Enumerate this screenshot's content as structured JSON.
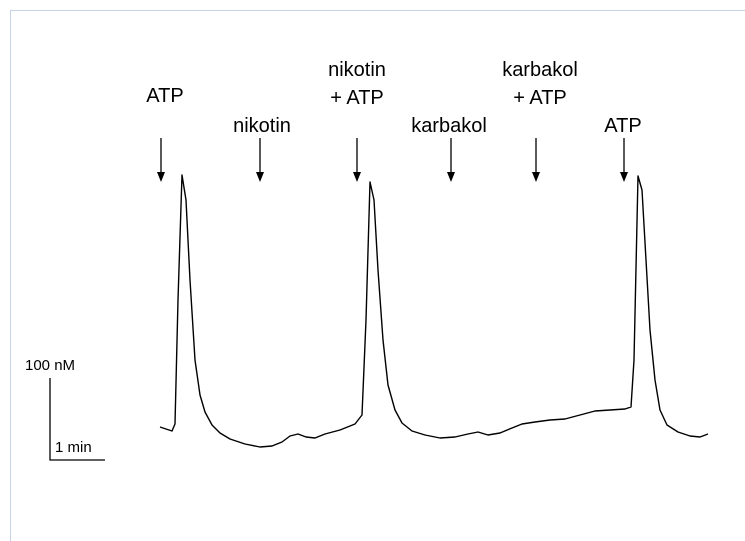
{
  "annotations": [
    [
      "ATP"
    ],
    [
      "nikotin"
    ],
    [
      "nikotin",
      "+ ATP"
    ],
    [
      "karbakol"
    ],
    [
      "karbakol",
      "+ ATP"
    ],
    [
      "ATP"
    ]
  ],
  "scale_bar": {
    "vertical": "100 nM",
    "horizontal": "1 min"
  }
}
